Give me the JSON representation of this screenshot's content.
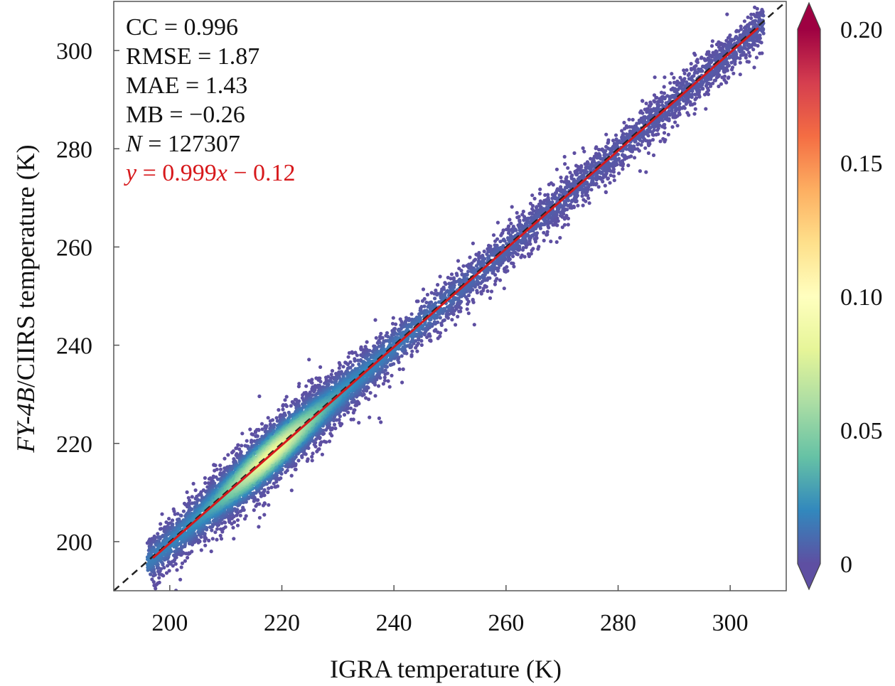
{
  "chart_data": {
    "type": "scatter",
    "title": "",
    "xlabel": "IGRA temperature (K)",
    "ylabel_italic": "FY-4B",
    "ylabel_rest": "/CIIRS temperature (K)",
    "xlim": [
      190,
      310
    ],
    "ylim": [
      190,
      310
    ],
    "xticks": [
      200,
      220,
      240,
      260,
      280,
      300
    ],
    "yticks": [
      200,
      220,
      240,
      260,
      280,
      300
    ],
    "stats": {
      "cc": "CC = 0.996",
      "rmse": "RMSE = 1.87",
      "mae": "MAE = 1.43",
      "mb": "MB = −0.26",
      "n_symbol": "N",
      "n_value": " = 127307",
      "fit_y": "y",
      "fit_mid": " = 0.999",
      "fit_x": "x",
      "fit_end": " − 0.12"
    },
    "fit_line": {
      "slope": 0.999,
      "intercept": -0.12,
      "x_range": [
        197,
        305
      ],
      "color": "#d7191c"
    },
    "identity_line": {
      "style": "dashed",
      "color": "#222222"
    },
    "point_x_range": [
      196,
      306
    ],
    "density_peak_x": 218,
    "colorbar": {
      "label": "",
      "min": 0,
      "max": 0.2,
      "ticks": [
        0,
        0.05,
        0.1,
        0.15,
        0.2
      ],
      "tick_labels": [
        "0",
        "0.05",
        "0.10",
        "0.15",
        "0.20"
      ],
      "colormap": "Spectral_r",
      "extend": "both"
    },
    "n_points": 127307
  }
}
